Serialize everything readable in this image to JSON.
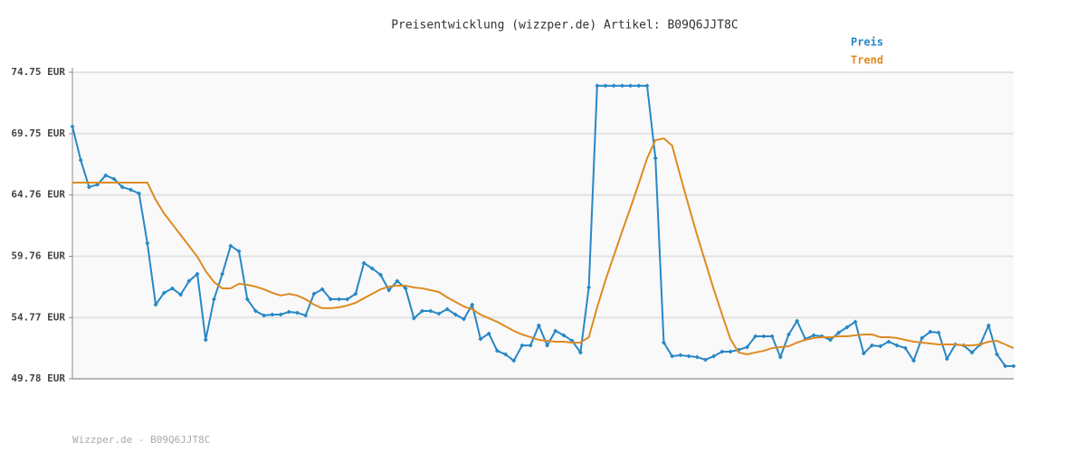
{
  "chart_data": {
    "type": "line",
    "title": "Preisentwicklung (wizzper.de) Artikel: B09Q6JJT8C",
    "footer": "Wizzper.de - B09Q6JJT8C",
    "ylim": [
      49.78,
      74.75
    ],
    "yticks": [
      {
        "value": 49.78,
        "label": "49.78 EUR"
      },
      {
        "value": 54.77,
        "label": "54.77 EUR"
      },
      {
        "value": 59.76,
        "label": "59.76 EUR"
      },
      {
        "value": 64.76,
        "label": "64.76 EUR"
      },
      {
        "value": 69.75,
        "label": "69.75 EUR"
      },
      {
        "value": 74.75,
        "label": "74.75 EUR"
      }
    ],
    "grid": true,
    "legend": "top-right",
    "series": [
      {
        "name": "Preis",
        "color": "#2787c6",
        "markers": true,
        "values": [
          70.33,
          67.6,
          65.4,
          65.6,
          66.35,
          66.06,
          65.4,
          65.18,
          64.88,
          60.83,
          55.82,
          56.78,
          57.15,
          56.63,
          57.74,
          58.32,
          52.95,
          56.26,
          58.32,
          60.61,
          60.17,
          56.26,
          55.3,
          54.94,
          55.01,
          55.01,
          55.23,
          55.16,
          54.94,
          56.7,
          57.07,
          56.26,
          56.26,
          56.26,
          56.7,
          59.21,
          58.77,
          58.25,
          57.0,
          57.74,
          57.15,
          54.71,
          55.3,
          55.3,
          55.08,
          55.45,
          55.01,
          54.64,
          55.82,
          53.02,
          53.46,
          52.06,
          51.77,
          51.25,
          52.5,
          52.5,
          54.13,
          52.5,
          53.68,
          53.32,
          52.87,
          51.92,
          57.22,
          73.65,
          73.65,
          73.65,
          73.65,
          73.65,
          73.65,
          73.65,
          67.75,
          52.73,
          51.62,
          51.7,
          51.62,
          51.55,
          51.33,
          51.62,
          51.99,
          51.99,
          52.14,
          52.36,
          53.24,
          53.24,
          53.24,
          51.55,
          53.39,
          54.49,
          53.02,
          53.32,
          53.24,
          52.95,
          53.54,
          53.98,
          54.42,
          51.84,
          52.5,
          52.43,
          52.8,
          52.5,
          52.28,
          51.25,
          53.1,
          53.61,
          53.54,
          51.4,
          52.58,
          52.5,
          51.92,
          52.58,
          54.13,
          51.77,
          50.81,
          50.81
        ]
      },
      {
        "name": "Trend",
        "color": "#de8a22",
        "markers": false,
        "values": [
          65.76,
          65.76,
          65.76,
          65.76,
          65.76,
          65.76,
          65.76,
          65.76,
          65.76,
          65.76,
          64.36,
          63.26,
          62.38,
          61.49,
          60.61,
          59.72,
          58.55,
          57.66,
          57.15,
          57.15,
          57.52,
          57.44,
          57.29,
          57.07,
          56.78,
          56.56,
          56.7,
          56.56,
          56.26,
          55.82,
          55.53,
          55.53,
          55.6,
          55.75,
          55.97,
          56.34,
          56.7,
          57.07,
          57.29,
          57.37,
          57.37,
          57.22,
          57.15,
          57.0,
          56.85,
          56.41,
          56.04,
          55.67,
          55.45,
          55.01,
          54.71,
          54.42,
          54.05,
          53.68,
          53.39,
          53.17,
          52.95,
          52.87,
          52.8,
          52.8,
          52.73,
          52.73,
          53.17,
          55.6,
          57.81,
          59.8,
          61.79,
          63.7,
          65.69,
          67.75,
          69.22,
          69.37,
          68.78,
          66.28,
          63.85,
          61.49,
          59.28,
          57.07,
          55.01,
          53.02,
          51.92,
          51.77,
          51.92,
          52.06,
          52.28,
          52.36,
          52.43,
          52.73,
          52.95,
          53.1,
          53.17,
          53.17,
          53.24,
          53.24,
          53.32,
          53.39,
          53.39,
          53.17,
          53.17,
          53.1,
          52.95,
          52.8,
          52.73,
          52.65,
          52.58,
          52.58,
          52.58,
          52.5,
          52.5,
          52.58,
          52.8,
          52.87,
          52.58,
          52.28
        ]
      }
    ]
  }
}
